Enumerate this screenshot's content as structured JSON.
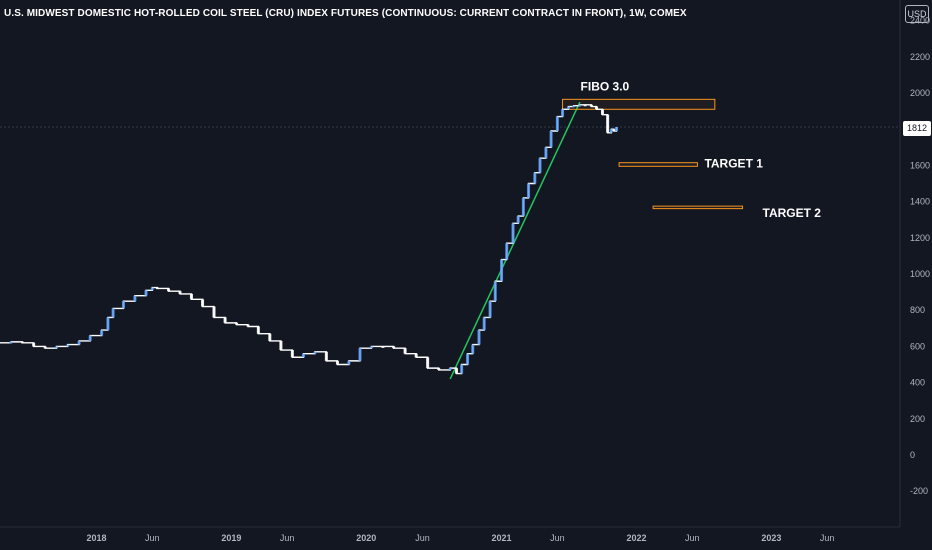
{
  "header": {
    "title": "U.S. MIDWEST DOMESTIC HOT-ROLLED COIL STEEL (CRU) INDEX FUTURES (CONTINUOUS: CURRENT CONTRACT IN FRONT), 1W, COMEX",
    "currency": "USD"
  },
  "chart_data": {
    "type": "line",
    "y_axis": {
      "range": [
        -300,
        2450
      ],
      "ticks": [
        "2400",
        "2200",
        "2000",
        "1800",
        "1600",
        "1400",
        "1200",
        "1000",
        "800",
        "600",
        "400",
        "200",
        "0",
        "-200"
      ],
      "tick_values": [
        2400,
        2200,
        2000,
        1800,
        1600,
        1400,
        1200,
        1000,
        800,
        600,
        400,
        200,
        0,
        -200
      ],
      "side": "right"
    },
    "x_axis": {
      "range": [
        "2017-04-15",
        "2023-12-15"
      ],
      "ticks": [
        {
          "label": "2018",
          "date": "2018-01-01"
        },
        {
          "label": "Jun",
          "date": "2018-06-01"
        },
        {
          "label": "2019",
          "date": "2019-01-01"
        },
        {
          "label": "Jun",
          "date": "2019-06-01"
        },
        {
          "label": "2020",
          "date": "2020-01-01"
        },
        {
          "label": "Jun",
          "date": "2020-06-01"
        },
        {
          "label": "2021",
          "date": "2021-01-01"
        },
        {
          "label": "Jun",
          "date": "2021-06-01"
        },
        {
          "label": "2022",
          "date": "2022-01-01"
        },
        {
          "label": "Jun",
          "date": "2022-06-01"
        },
        {
          "label": "2023",
          "date": "2023-01-01"
        },
        {
          "label": "Jun",
          "date": "2023-06-01"
        }
      ]
    },
    "grid": false,
    "last_price": {
      "label": "1812",
      "value": 1812
    },
    "colors": {
      "price": "#ffffff",
      "rising": "#5b9cf6",
      "trendline": "#22c55e",
      "annotation": "#f7941d"
    },
    "series": [
      {
        "x": [
          "2017-04-15",
          "2017-05-15",
          "2017-06-15",
          "2017-07-15",
          "2017-08-15",
          "2017-09-15",
          "2017-10-15",
          "2017-11-15",
          "2017-12-15",
          "2018-01-15",
          "2018-02-01",
          "2018-02-15",
          "2018-03-15",
          "2018-04-15",
          "2018-05-15",
          "2018-06-01",
          "2018-06-15",
          "2018-07-15",
          "2018-08-15",
          "2018-09-15",
          "2018-10-15",
          "2018-11-15",
          "2018-12-15",
          "2019-01-15",
          "2019-02-15",
          "2019-03-15",
          "2019-04-15",
          "2019-05-15",
          "2019-06-15",
          "2019-07-15",
          "2019-08-15",
          "2019-09-15",
          "2019-10-15",
          "2019-11-15",
          "2019-12-15",
          "2020-01-15",
          "2020-02-15",
          "2020-03-15",
          "2020-04-15",
          "2020-05-15",
          "2020-06-15",
          "2020-07-15",
          "2020-08-15",
          "2020-09-01",
          "2020-09-15",
          "2020-10-01",
          "2020-10-15",
          "2020-11-01",
          "2020-11-15",
          "2020-12-01",
          "2020-12-15",
          "2021-01-01",
          "2021-01-15",
          "2021-02-01",
          "2021-02-15",
          "2021-03-01",
          "2021-03-15",
          "2021-04-01",
          "2021-04-15",
          "2021-05-01",
          "2021-05-15",
          "2021-06-01",
          "2021-06-15",
          "2021-07-01",
          "2021-07-15",
          "2021-08-01",
          "2021-08-15",
          "2021-09-01",
          "2021-09-15",
          "2021-10-01",
          "2021-10-15",
          "2021-10-25",
          "2021-11-01",
          "2021-11-08"
        ],
        "values": [
          620,
          625,
          620,
          600,
          590,
          600,
          610,
          630,
          660,
          690,
          760,
          810,
          850,
          880,
          910,
          925,
          920,
          905,
          890,
          860,
          820,
          760,
          730,
          720,
          710,
          670,
          630,
          580,
          540,
          560,
          570,
          520,
          500,
          520,
          590,
          600,
          600,
          590,
          560,
          540,
          480,
          470,
          480,
          450,
          500,
          560,
          610,
          690,
          760,
          850,
          960,
          1080,
          1170,
          1280,
          1320,
          1420,
          1500,
          1560,
          1640,
          1700,
          1790,
          1870,
          1910,
          1925,
          1930,
          1935,
          1935,
          1925,
          1910,
          1880,
          1780,
          1800,
          1790,
          1812
        ]
      }
    ],
    "annotations": [
      {
        "type": "line",
        "label": "",
        "x": [
          "2020-08-15",
          "2021-08-01"
        ],
        "y": [
          420,
          1950
        ]
      },
      {
        "type": "rect",
        "label": "FIBO 3.0",
        "x": [
          "2021-06-15",
          "2022-08-01"
        ],
        "y": [
          1910,
          1965
        ]
      },
      {
        "type": "rect",
        "label": "TARGET 1",
        "x": [
          "2021-11-15",
          "2022-06-15"
        ],
        "y": [
          1595,
          1615
        ]
      },
      {
        "type": "rect",
        "label": "TARGET 2",
        "x": [
          "2022-02-15",
          "2022-10-15"
        ],
        "y": [
          1362,
          1375
        ]
      }
    ]
  }
}
